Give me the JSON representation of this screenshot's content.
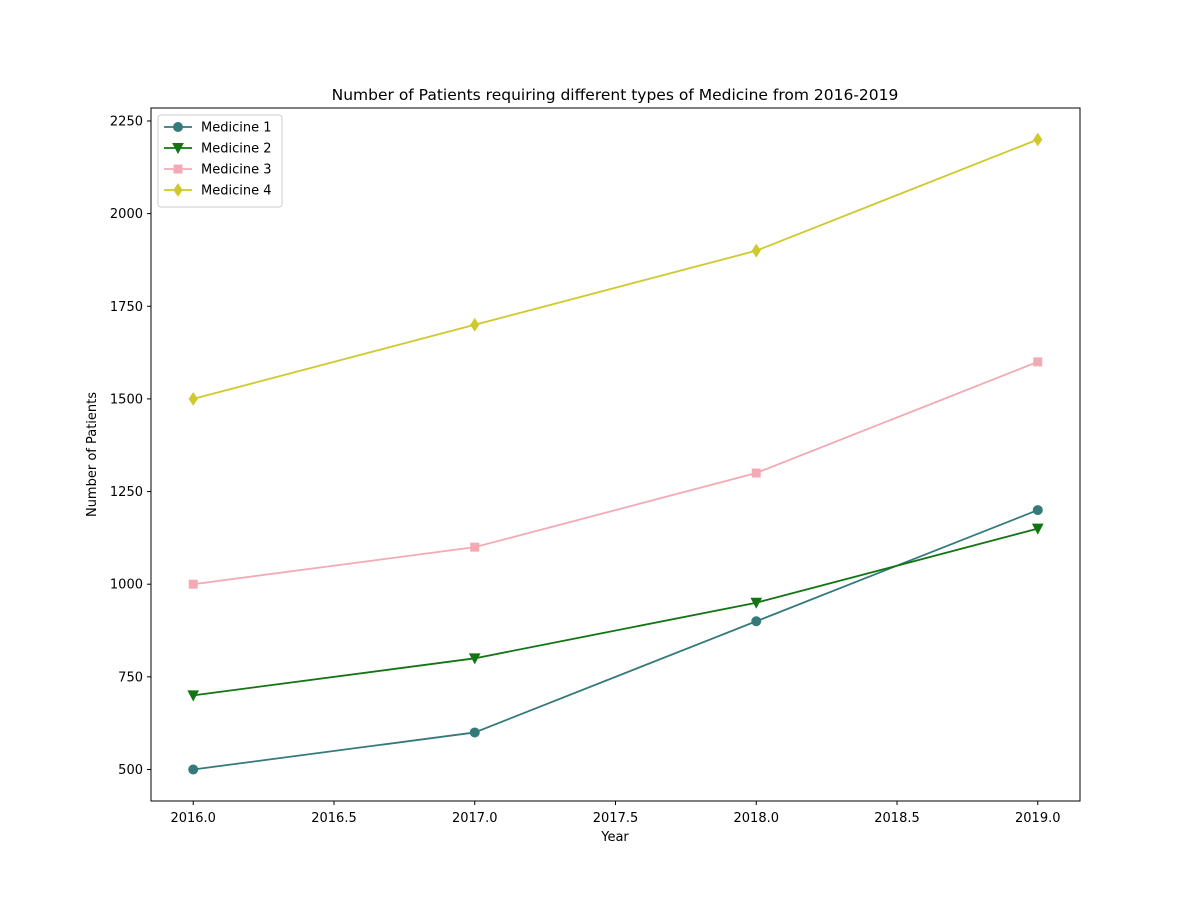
{
  "chart_data": {
    "type": "line",
    "title": "Number of Patients requiring different types of Medicine from 2016-2019",
    "xlabel": "Year",
    "ylabel": "Number of Patients",
    "x": [
      2016,
      2017,
      2018,
      2019
    ],
    "xlim": [
      2015.85,
      2019.15
    ],
    "ylim": [
      415,
      2285
    ],
    "xticks": [
      2016.0,
      2016.5,
      2017.0,
      2017.5,
      2018.0,
      2018.5,
      2019.0
    ],
    "xtick_labels": [
      "2016.0",
      "2016.5",
      "2017.0",
      "2017.5",
      "2018.0",
      "2018.5",
      "2019.0"
    ],
    "yticks": [
      500,
      750,
      1000,
      1250,
      1500,
      1750,
      2000,
      2250
    ],
    "ytick_labels": [
      "500",
      "750",
      "1000",
      "1250",
      "1500",
      "1750",
      "2000",
      "2250"
    ],
    "grid": false,
    "legend_position": "top-left",
    "series": [
      {
        "name": "Medicine 1",
        "values": [
          500,
          600,
          900,
          1200
        ],
        "color": "#347a7a",
        "marker": "circle"
      },
      {
        "name": "Medicine 2",
        "values": [
          700,
          800,
          950,
          1150
        ],
        "color": "#137413",
        "marker": "triangle-down"
      },
      {
        "name": "Medicine 3",
        "values": [
          1000,
          1100,
          1300,
          1600
        ],
        "color": "#f4aab5",
        "marker": "square"
      },
      {
        "name": "Medicine 4",
        "values": [
          1500,
          1700,
          1900,
          2200
        ],
        "color": "#cfc92d",
        "marker": "diamond"
      }
    ]
  }
}
